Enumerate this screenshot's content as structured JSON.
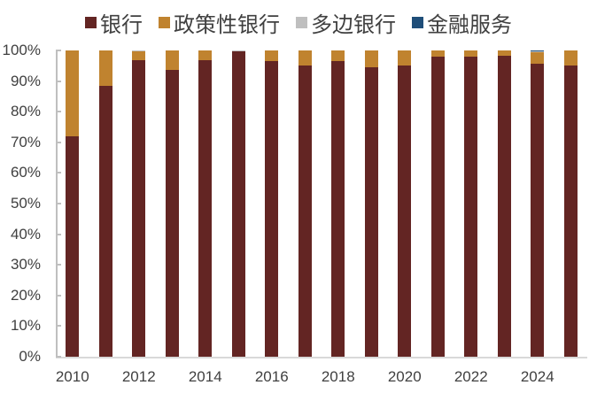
{
  "chart_data": {
    "type": "bar",
    "stacked": true,
    "percent": true,
    "title": "",
    "xlabel": "",
    "ylabel": "",
    "ylim": [
      0,
      100
    ],
    "yticks": [
      "0%",
      "10%",
      "20%",
      "30%",
      "40%",
      "50%",
      "60%",
      "70%",
      "80%",
      "90%",
      "100%"
    ],
    "xtick_labels": [
      "2010",
      "2012",
      "2014",
      "2016",
      "2018",
      "2020",
      "2022",
      "2024"
    ],
    "categories": [
      "2010",
      "2011",
      "2012",
      "2013",
      "2014",
      "2015",
      "2016",
      "2017",
      "2018",
      "2019",
      "2020",
      "2021",
      "2022",
      "2023",
      "2024",
      "2025"
    ],
    "legend_position": "top",
    "series": [
      {
        "name": "银行",
        "color": "#632523",
        "values": [
          72.0,
          88.5,
          96.7,
          93.6,
          96.9,
          99.7,
          96.5,
          95.1,
          96.5,
          94.5,
          95.0,
          98.0,
          98.0,
          98.3,
          95.8,
          95.1
        ]
      },
      {
        "name": "政策性银行",
        "color": "#C0832F",
        "values": [
          28.0,
          11.5,
          3.0,
          6.4,
          3.1,
          0.0,
          3.5,
          4.9,
          3.5,
          5.5,
          5.0,
          2.0,
          2.0,
          1.7,
          3.6,
          4.9
        ]
      },
      {
        "name": "多边银行",
        "color": "#BFBFBF",
        "values": [
          0,
          0,
          0.3,
          0,
          0,
          0.3,
          0,
          0,
          0,
          0,
          0,
          0,
          0,
          0,
          0.3,
          0
        ]
      },
      {
        "name": "金融服务",
        "color": "#1F4E79",
        "values": [
          0,
          0,
          0,
          0,
          0,
          0,
          0,
          0,
          0,
          0,
          0,
          0,
          0,
          0,
          0.3,
          0
        ]
      }
    ]
  }
}
